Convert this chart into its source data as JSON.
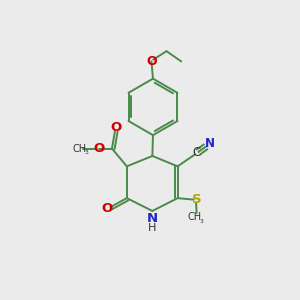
{
  "bg_color": "#ebebeb",
  "bond_color": "#4a8a4a",
  "o_color": "#cc0000",
  "n_color": "#2222cc",
  "s_color": "#aaaa00",
  "c_color": "#333333",
  "figsize": [
    3.0,
    3.0
  ],
  "dpi": 100,
  "xlim": [
    0,
    10
  ],
  "ylim": [
    0,
    10
  ],
  "lw": 1.4
}
